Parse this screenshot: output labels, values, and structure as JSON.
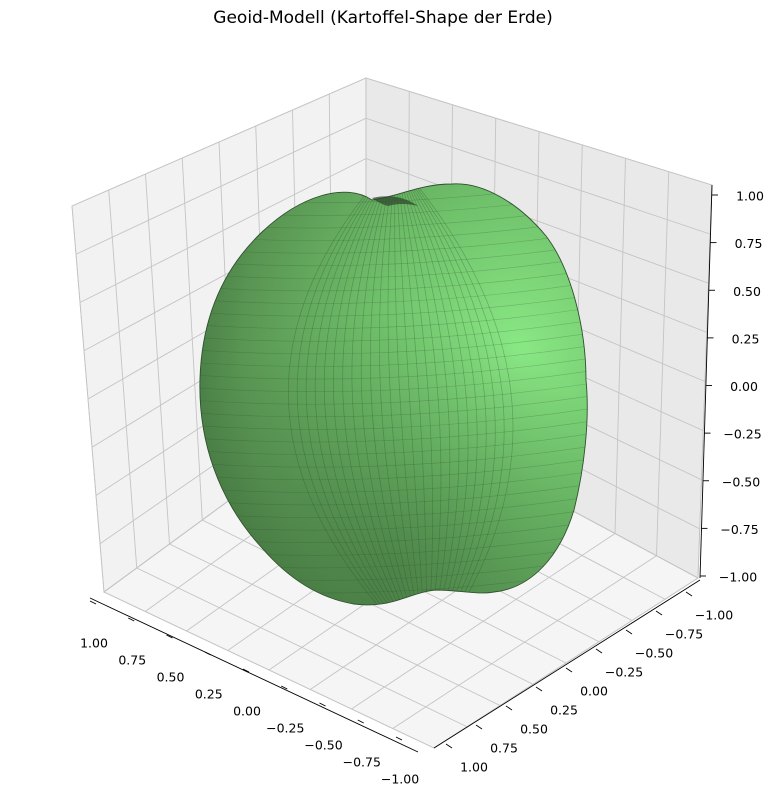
{
  "chart_data": {
    "type": "surface3d",
    "title": "Geoid-Modell (Kartoffel-Shape der Erde)",
    "xlabel": "",
    "ylabel": "",
    "zlabel": "",
    "xlim": [
      -1.0,
      1.0
    ],
    "ylim": [
      -1.0,
      1.0
    ],
    "zlim": [
      -1.0,
      1.0
    ],
    "grid": true,
    "surface_color": "#7ddc7a",
    "edge_color": "#2f5a2f",
    "x_ticks": [
      "1.00",
      "0.75",
      "0.50",
      "0.25",
      "0.00",
      "−0.25",
      "−0.50",
      "−0.75",
      "−1.00"
    ],
    "y_ticks": [
      "−1.00",
      "−0.75",
      "−0.50",
      "−0.25",
      "0.00",
      "0.25",
      "0.50",
      "0.75",
      "1.00"
    ],
    "z_ticks": [
      "1.00",
      "0.75",
      "0.50",
      "0.25",
      "0.00",
      "−0.25",
      "−0.50",
      "−0.75",
      "−1.00"
    ]
  }
}
